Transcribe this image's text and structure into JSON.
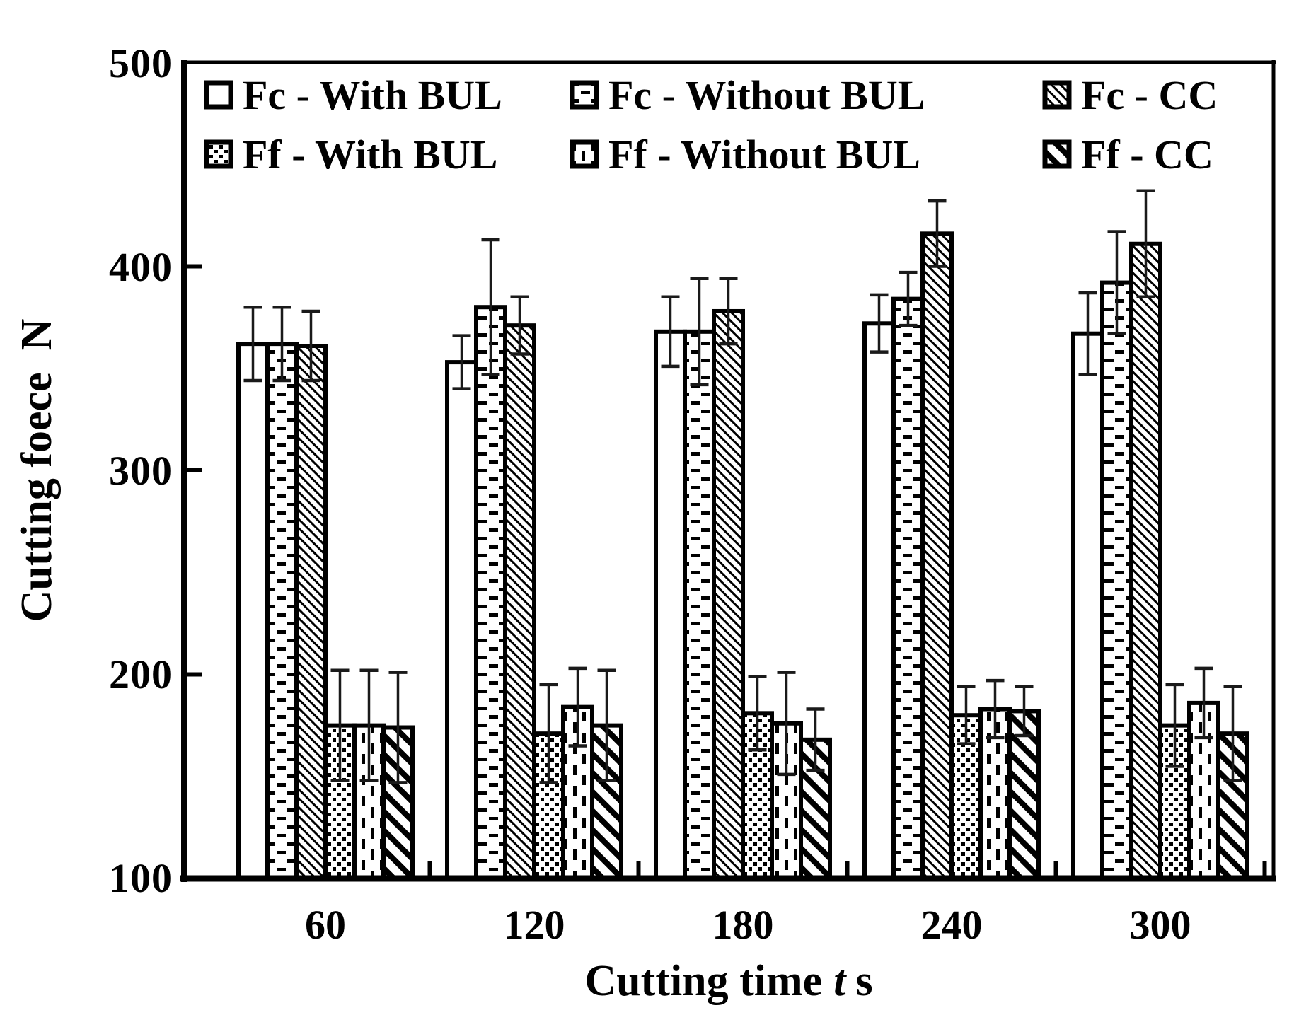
{
  "figure": {
    "background": "#ffffff",
    "ink_color": "#000000",
    "error_bar_color": "#1a1a1a"
  },
  "chart_data": {
    "type": "bar",
    "title": "",
    "ylabel": "Cutting foece  N",
    "xlabel_prefix": "Cutting time",
    "xlabel_italic": "t",
    "xlabel_suffix": "s",
    "ylim": [
      100,
      500
    ],
    "ytick_values": [
      500,
      400,
      300,
      200,
      100
    ],
    "ytick_labels": [
      "500",
      "400",
      "300",
      "200",
      "100"
    ],
    "categories": [
      "60",
      "120",
      "180",
      "240",
      "300"
    ],
    "grid": false,
    "legend_position": "inside-top, 2 rows x 3 columns",
    "error_bars": true,
    "series": [
      {
        "name": "Fc - With BUL",
        "pattern": "plain-white",
        "values": [
          362,
          353,
          368,
          372,
          367
        ],
        "errors": [
          18,
          13,
          17,
          14,
          20
        ]
      },
      {
        "name": "Fc - Without BUL",
        "pattern": "dash-rows",
        "values": [
          362,
          380,
          368,
          384,
          392
        ],
        "errors": [
          18,
          33,
          26,
          13,
          25
        ]
      },
      {
        "name": "Fc - CC",
        "pattern": "fine-diagonal",
        "values": [
          361,
          371,
          378,
          416,
          411
        ],
        "errors": [
          17,
          14,
          16,
          16,
          26
        ]
      },
      {
        "name": "Ff - With BUL",
        "pattern": "dense-dots",
        "values": [
          175,
          171,
          181,
          180,
          175
        ],
        "errors": [
          27,
          24,
          18,
          14,
          20
        ]
      },
      {
        "name": "Ff - Without BUL",
        "pattern": "vertical-dashes",
        "values": [
          175,
          184,
          176,
          183,
          186
        ],
        "errors": [
          27,
          19,
          25,
          14,
          17
        ]
      },
      {
        "name": "Ff - CC",
        "pattern": "wide-diagonal",
        "values": [
          174,
          175,
          168,
          182,
          171
        ],
        "errors": [
          27,
          27,
          15,
          12,
          23
        ]
      }
    ]
  }
}
